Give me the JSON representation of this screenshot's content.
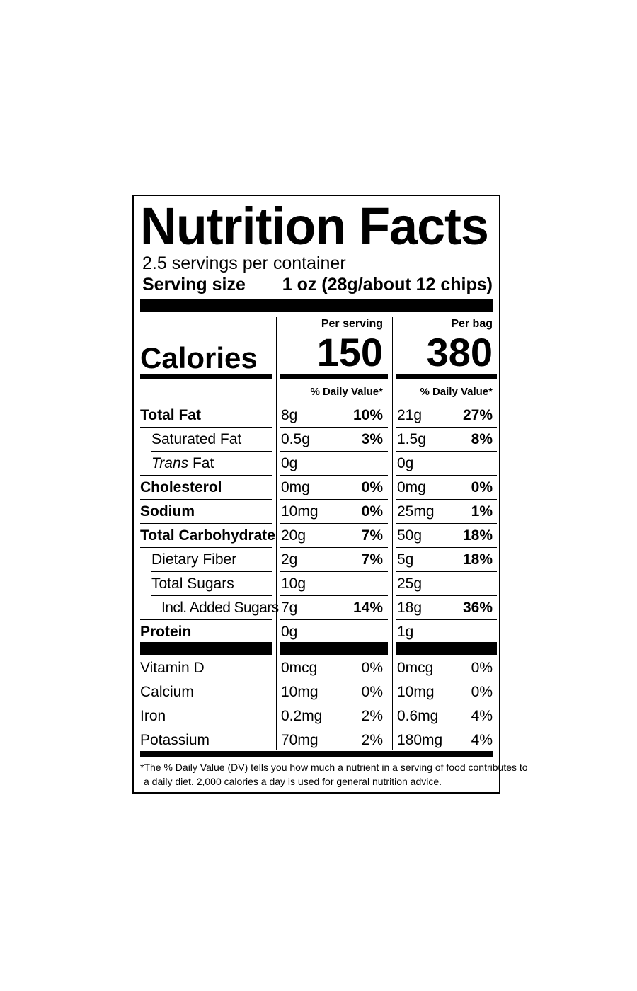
{
  "label": {
    "title": "Nutrition Facts",
    "servings_per_container": "2.5 servings per container",
    "serving_size_label": "Serving size",
    "serving_size_value": "1 oz (28g/about 12 chips)",
    "calories_label": "Calories",
    "col1_header": "Per serving",
    "col2_header": "Per bag",
    "calories_col1": "150",
    "calories_col2": "380",
    "dv_header": "% Daily Value*",
    "nutrients": [
      {
        "name": "Total Fat",
        "v1": "8g",
        "p1": "10%",
        "v2": "21g",
        "p2": "27%"
      },
      {
        "name": "Saturated Fat",
        "v1": "0.5g",
        "p1": "3%",
        "v2": "1.5g",
        "p2": "8%"
      },
      {
        "name_italic": "Trans",
        "name_rest": " Fat",
        "v1": "0g",
        "p1": "",
        "v2": "0g",
        "p2": ""
      },
      {
        "name": "Cholesterol",
        "v1": "0mg",
        "p1": "0%",
        "v2": "0mg",
        "p2": "0%"
      },
      {
        "name": "Sodium",
        "v1": "10mg",
        "p1": "0%",
        "v2": "25mg",
        "p2": "1%"
      },
      {
        "name": "Total Carbohydrate",
        "v1": "20g",
        "p1": "7%",
        "v2": "50g",
        "p2": "18%"
      },
      {
        "name": "Dietary Fiber",
        "v1": "2g",
        "p1": "7%",
        "v2": "5g",
        "p2": "18%"
      },
      {
        "name": "Total Sugars",
        "v1": "10g",
        "p1": "",
        "v2": "25g",
        "p2": ""
      },
      {
        "name": "Incl. Added Sugars",
        "v1": "7g",
        "p1": "14%",
        "v2": "18g",
        "p2": "36%"
      },
      {
        "name": "Protein",
        "v1": "0g",
        "p1": "",
        "v2": "1g",
        "p2": ""
      }
    ],
    "vitamins": [
      {
        "name": "Vitamin D",
        "v1": "0mcg",
        "p1": "0%",
        "v2": "0mcg",
        "p2": "0%"
      },
      {
        "name": "Calcium",
        "v1": "10mg",
        "p1": "0%",
        "v2": "10mg",
        "p2": "0%"
      },
      {
        "name": "Iron",
        "v1": "0.2mg",
        "p1": "2%",
        "v2": "0.6mg",
        "p2": "4%"
      },
      {
        "name": "Potassium",
        "v1": "70mg",
        "p1": "2%",
        "v2": "180mg",
        "p2": "4%"
      }
    ],
    "footnote_line1": "*The % Daily Value (DV) tells you how much a nutrient in a serving of food contributes to",
    "footnote_line2": "a daily diet. 2,000 calories a day is used for general nutrition advice."
  }
}
